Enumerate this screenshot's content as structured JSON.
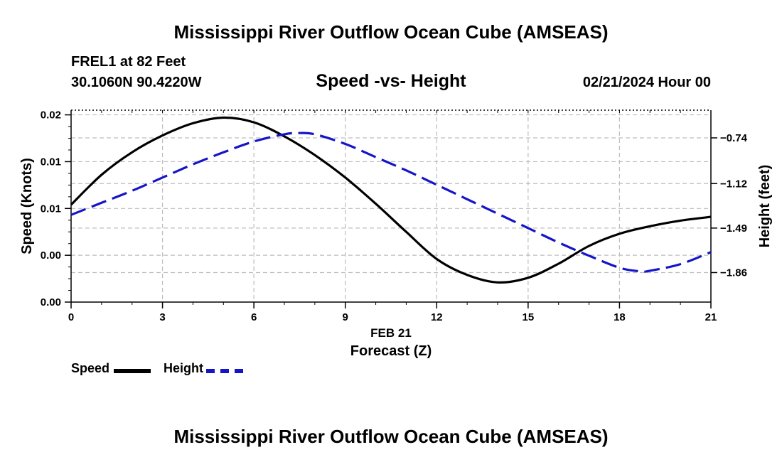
{
  "header": {
    "main_title": "Mississippi River Outflow Ocean Cube (AMSEAS)",
    "station": "FREL1 at 82 Feet",
    "coordinates": "30.1060N  90.4220W",
    "subtitle": "Speed -vs- Height",
    "datetime": "02/21/2024 Hour 00"
  },
  "footer": {
    "repeat_title": "Mississippi River Outflow Ocean Cube (AMSEAS)"
  },
  "legend": {
    "speed_label": "Speed",
    "height_label": "Height"
  },
  "colors": {
    "speed": "#000000",
    "height": "#1515c8",
    "grid": "#bdbdbd"
  },
  "chart_data": {
    "type": "line",
    "title": "Speed -vs- Height",
    "xlabel": "Forecast (Z)",
    "x_date_label": "FEB 21",
    "ylabel": "Speed (Knots)",
    "y2label": "Height (feet)",
    "xlim": [
      0,
      21
    ],
    "x_ticks": [
      0,
      3,
      6,
      9,
      12,
      15,
      18,
      21
    ],
    "ylim": [
      0,
      0.0205
    ],
    "y_ticks": [
      {
        "value": 0.0,
        "label": "0.00"
      },
      {
        "value": 0.005,
        "label": "0.00"
      },
      {
        "value": 0.01,
        "label": "0.01"
      },
      {
        "value": 0.015,
        "label": "0.01"
      },
      {
        "value": 0.02,
        "label": "0.02"
      }
    ],
    "y2lim": [
      -2.1055,
      -0.5095
    ],
    "y2_ticks": [
      {
        "value": -0.74,
        "label": "−0.74"
      },
      {
        "value": -1.12,
        "label": "−1.12"
      },
      {
        "value": -1.49,
        "label": "−1.49"
      },
      {
        "value": -1.86,
        "label": "−1.86"
      }
    ],
    "grid": true,
    "series": [
      {
        "name": "Speed",
        "axis": "left",
        "style": "solid",
        "x": [
          0,
          1,
          2,
          3,
          4,
          5,
          6,
          7,
          8,
          9,
          10,
          11,
          12,
          13,
          14,
          15,
          16,
          17,
          18,
          19,
          20,
          21
        ],
        "values": [
          0.0104,
          0.0136,
          0.016,
          0.0178,
          0.0191,
          0.0197,
          0.0192,
          0.0177,
          0.0157,
          0.0133,
          0.0105,
          0.0075,
          0.0046,
          0.0029,
          0.0021,
          0.0026,
          0.0041,
          0.006,
          0.0073,
          0.0081,
          0.0087,
          0.0091
        ]
      },
      {
        "name": "Height",
        "axis": "right",
        "style": "dashed",
        "x": [
          0,
          1,
          2,
          3,
          4,
          5,
          6,
          7,
          7.5,
          8,
          9,
          10,
          11,
          12,
          13,
          14,
          15,
          16,
          17,
          18,
          18.7,
          19,
          20,
          21
        ],
        "values": [
          -1.38,
          -1.28,
          -1.18,
          -1.07,
          -0.96,
          -0.86,
          -0.77,
          -0.71,
          -0.7,
          -0.71,
          -0.79,
          -0.9,
          -1.01,
          -1.13,
          -1.25,
          -1.37,
          -1.49,
          -1.61,
          -1.72,
          -1.82,
          -1.85,
          -1.845,
          -1.79,
          -1.69
        ]
      }
    ]
  }
}
